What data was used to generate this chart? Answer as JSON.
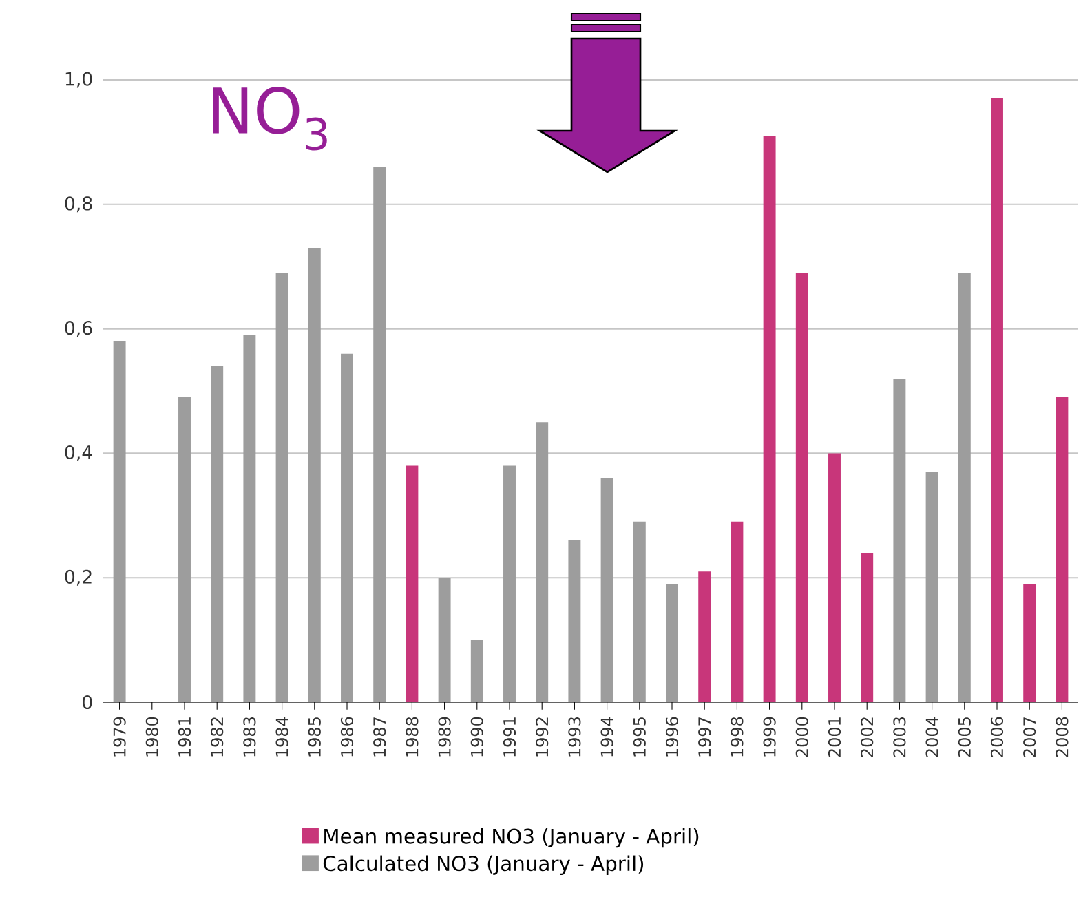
{
  "chart_data": {
    "type": "bar",
    "title": "NO$_{3}$",
    "categories": [
      "1979",
      "1980",
      "1981",
      "1982",
      "1983",
      "1984",
      "1985",
      "1986",
      "1987",
      "1988",
      "1989",
      "1990",
      "1991",
      "1992",
      "1993",
      "1994",
      "1995",
      "1996",
      "1997",
      "1998",
      "1999",
      "2000",
      "2001",
      "2002",
      "2003",
      "2004",
      "2005",
      "2006",
      "2007",
      "2008"
    ],
    "series": [
      {
        "name": "Mean measured NO3 (January - April)",
        "color": "#c8367a",
        "values": [
          null,
          null,
          null,
          null,
          null,
          null,
          null,
          null,
          null,
          0.38,
          null,
          null,
          null,
          null,
          null,
          null,
          null,
          null,
          0.21,
          0.29,
          0.91,
          0.69,
          0.4,
          0.24,
          null,
          null,
          null,
          0.97,
          0.19,
          0.49
        ]
      },
      {
        "name": "Calculated NO3 (January - April)",
        "color": "#9d9d9d",
        "values": [
          0.58,
          null,
          0.49,
          0.54,
          0.59,
          0.69,
          0.73,
          0.56,
          0.86,
          null,
          0.2,
          0.1,
          0.38,
          0.45,
          0.26,
          0.36,
          0.29,
          0.19,
          null,
          null,
          null,
          null,
          null,
          null,
          0.52,
          0.37,
          0.69,
          null,
          null,
          null
        ]
      }
    ],
    "ylim": [
      0,
      1.0
    ],
    "yticks": [
      0,
      {
        "value": 0.2,
        "label": "0,2"
      },
      {
        "value": 0.4,
        "label": "0,4"
      },
      {
        "value": 0.6,
        "label": "0,6"
      },
      {
        "value": 0.8,
        "label": "0,8"
      },
      {
        "value": 1.0,
        "label": "1,0"
      }
    ],
    "grid": "y",
    "legend": "bottom"
  }
}
